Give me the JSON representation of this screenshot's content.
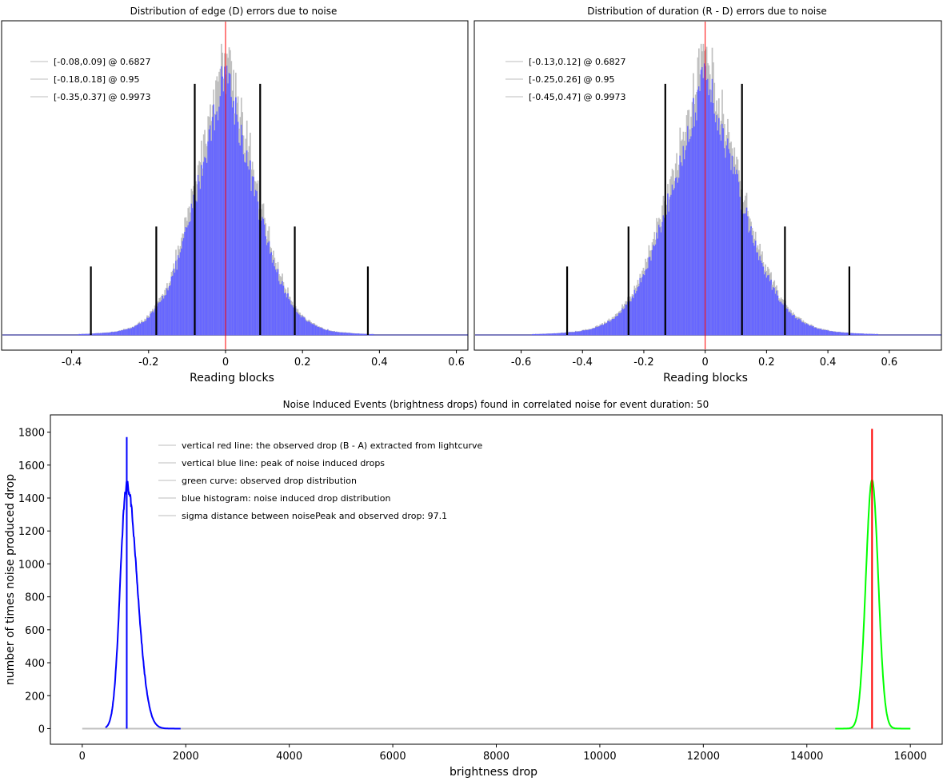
{
  "chart_data": [
    {
      "type": "bar",
      "title": "Distribution of edge (D) errors due to noise",
      "xlabel": "Reading blocks",
      "ylabel": "",
      "xlim": [
        -0.58,
        0.63
      ],
      "x_ticks": [
        -0.4,
        -0.2,
        0,
        0.2,
        0.4,
        0.6
      ],
      "x_tick_labels": [
        "-0.4",
        "-0.2",
        "0",
        "0.2",
        "0.4",
        "0.6"
      ],
      "distribution": {
        "center": 0.0,
        "sigma": 0.085,
        "peak": 1.0,
        "shape": "laplace-gauss"
      },
      "legend": [
        {
          "label": "[-0.08,0.09] @ 0.6827",
          "low": -0.08,
          "high": 0.09,
          "level": 0.6827,
          "marker_height": 0.8
        },
        {
          "label": "[-0.18,0.18] @ 0.95",
          "low": -0.18,
          "high": 0.18,
          "level": 0.95,
          "marker_height": 0.3
        },
        {
          "label": "[-0.35,0.37] @ 0.9973",
          "low": -0.35,
          "high": 0.37,
          "level": 0.9973,
          "marker_height": 0.16
        }
      ],
      "center_line": 0,
      "colors": {
        "fill": "#6666ff",
        "envelope": "#c0c0c0",
        "marker": "#000000",
        "center": "#ff0000",
        "baseline": "#000080"
      }
    },
    {
      "type": "bar",
      "title": "Distribution of duration (R - D) errors due to noise",
      "xlabel": "Reading blocks",
      "ylabel": "",
      "xlim": [
        -0.75,
        0.77
      ],
      "x_ticks": [
        -0.6,
        -0.4,
        -0.2,
        0,
        0.2,
        0.4,
        0.6
      ],
      "x_tick_labels": [
        "-0.6",
        "-0.4",
        "-0.2",
        "0",
        "0.2",
        "0.4",
        "0.6"
      ],
      "distribution": {
        "center": 0.0,
        "sigma": 0.125,
        "peak": 1.0,
        "shape": "laplace-gauss"
      },
      "legend": [
        {
          "label": "[-0.13,0.12] @ 0.6827",
          "low": -0.13,
          "high": 0.12,
          "level": 0.6827,
          "marker_height": 0.8
        },
        {
          "label": "[-0.25,0.26] @ 0.95",
          "low": -0.25,
          "high": 0.26,
          "level": 0.95,
          "marker_height": 0.3
        },
        {
          "label": "[-0.45,0.47] @ 0.9973",
          "low": -0.45,
          "high": 0.47,
          "level": 0.9973,
          "marker_height": 0.16
        }
      ],
      "center_line": 0,
      "colors": {
        "fill": "#6666ff",
        "envelope": "#c0c0c0",
        "marker": "#000000",
        "center": "#ff0000",
        "baseline": "#000080"
      }
    },
    {
      "type": "line",
      "title": "Noise Induced Events (brightness drops) found in correlated noise for event duration: 50",
      "xlabel": "brightness drop",
      "ylabel": "number of times noise produced drop",
      "xlim": [
        -600,
        16600
      ],
      "ylim": [
        -90,
        1900
      ],
      "x_ticks": [
        0,
        2000,
        4000,
        6000,
        8000,
        10000,
        12000,
        14000,
        16000
      ],
      "y_ticks": [
        0,
        200,
        400,
        600,
        800,
        1000,
        1200,
        1400,
        1600,
        1800
      ],
      "series": [
        {
          "name": "blue histogram: noise induced drop distribution",
          "kind": "histogram",
          "color": "#0000ff",
          "peak_x": 860,
          "peak_y": 1480,
          "sigma": 125,
          "x_range": [
            450,
            1900
          ]
        },
        {
          "name": "green curve: observed drop distribution",
          "kind": "curve",
          "color": "#00ff00",
          "peak_x": 15260,
          "peak_y": 1510,
          "sigma": 120,
          "x_range": [
            14550,
            16000
          ]
        }
      ],
      "baseline": {
        "x_range": [
          0,
          16000
        ],
        "y": 0,
        "color": "#c0c0c0"
      },
      "vertical_lines": [
        {
          "name": "vertical blue line: peak of noise induced drops",
          "x": 860,
          "y_top": 1770,
          "color": "#0000ff"
        },
        {
          "name": "vertical red line: the observed drop (B - A) extracted from lightcurve",
          "x": 15260,
          "y_top": 1820,
          "color": "#ff0000"
        }
      ],
      "legend": [
        "vertical red line: the observed drop (B - A) extracted from lightcurve",
        "vertical blue line: peak of noise induced drops",
        "green curve: observed drop distribution",
        "blue histogram: noise induced drop distribution",
        "sigma distance between noisePeak and observed drop: 97.1"
      ]
    }
  ]
}
